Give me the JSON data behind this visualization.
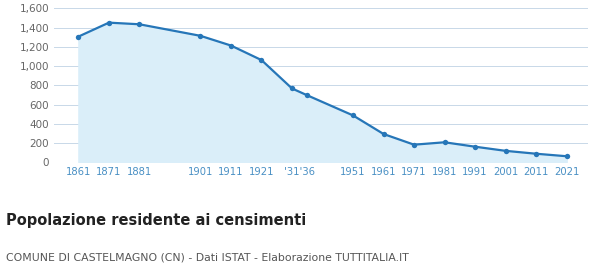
{
  "years": [
    1861,
    1871,
    1881,
    1901,
    1911,
    1921,
    1931,
    1936,
    1951,
    1961,
    1971,
    1981,
    1991,
    2001,
    2011,
    2021
  ],
  "population": [
    1307,
    1452,
    1435,
    1315,
    1214,
    1063,
    768,
    697,
    488,
    295,
    184,
    209,
    163,
    120,
    90,
    64
  ],
  "line_color": "#2676b8",
  "fill_color": "#daeef9",
  "marker_color": "#2676b8",
  "bg_color": "#ffffff",
  "grid_color": "#c8d8e8",
  "title": "Popolazione residente ai censimenti",
  "subtitle": "COMUNE DI CASTELMAGNO (CN) - Dati ISTAT - Elaborazione TUTTITALIA.IT",
  "ylim": [
    0,
    1600
  ],
  "yticks": [
    0,
    200,
    400,
    600,
    800,
    1000,
    1200,
    1400,
    1600
  ],
  "title_fontsize": 10.5,
  "subtitle_fontsize": 7.8,
  "tick_color": "#4a90c4",
  "ytick_color": "#666666"
}
